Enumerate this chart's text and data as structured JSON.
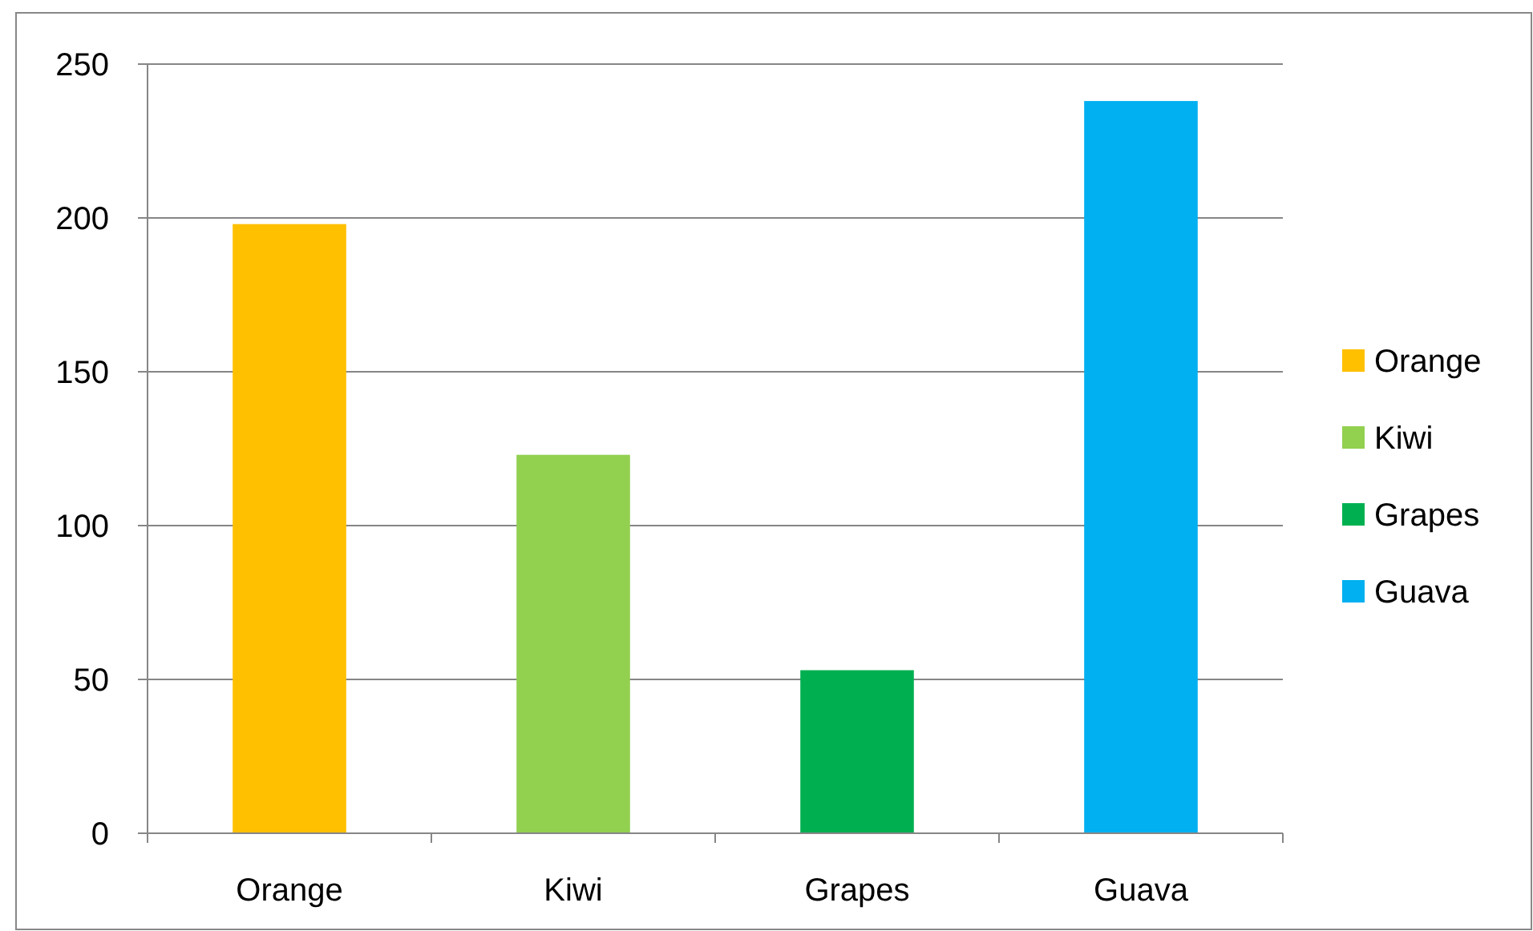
{
  "chart_data": {
    "type": "bar",
    "categories": [
      "Orange",
      "Kiwi",
      "Grapes",
      "Guava"
    ],
    "series": [
      {
        "name": "Orange",
        "color": "#ffc000",
        "values": [
          198,
          null,
          null,
          null
        ]
      },
      {
        "name": "Kiwi",
        "color": "#92d050",
        "values": [
          null,
          123,
          null,
          null
        ]
      },
      {
        "name": "Grapes",
        "color": "#00b050",
        "values": [
          null,
          null,
          53,
          null
        ]
      },
      {
        "name": "Guava",
        "color": "#00b0f0",
        "values": [
          null,
          null,
          null,
          238
        ]
      }
    ],
    "ylim": [
      0,
      250
    ],
    "yticks": [
      0,
      50,
      100,
      150,
      200,
      250
    ],
    "grid": "y",
    "legend": "right"
  }
}
